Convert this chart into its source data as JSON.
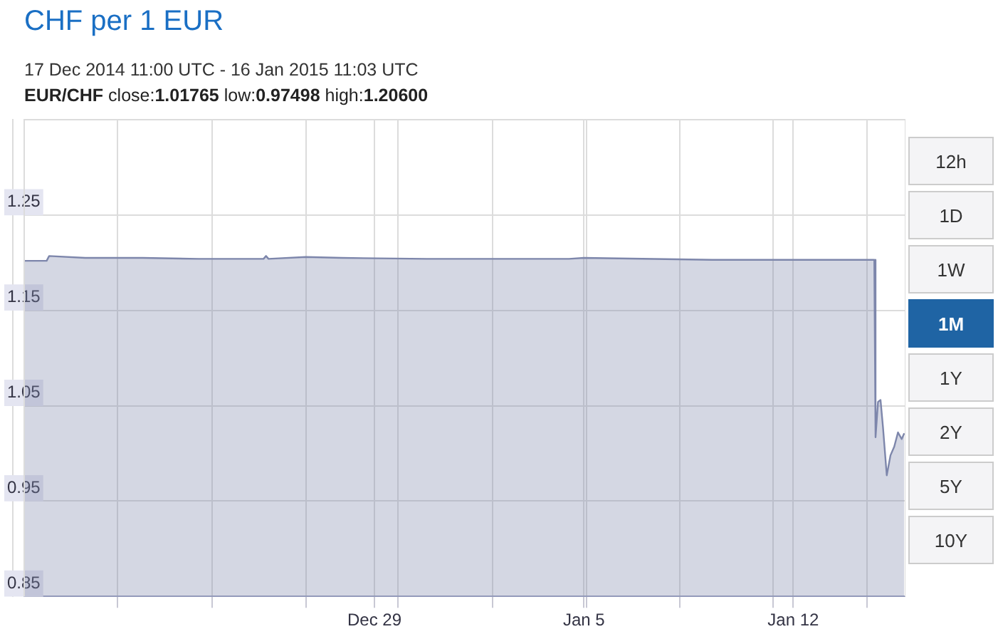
{
  "chart_data": {
    "type": "area",
    "title": "CHF per 1 EUR",
    "subtitle": "17 Dec 2014 11:00 UTC - 16 Jan 2015 11:03 UTC",
    "annotations": [
      "EUR/CHF close:1.01765 low:0.97498 high:1.20600",
      "12h",
      "1D",
      "1W",
      "1M",
      "1Y",
      "2Y",
      "5Y",
      "10Y"
    ],
    "x": [
      "2014-12-17T07:00",
      "2014-12-18T01:00",
      "2014-12-18T03:00",
      "2014-12-19T08:00",
      "2014-12-21T06:00",
      "2014-12-23T03:00",
      "2014-12-25T07:00",
      "2014-12-25T09:00",
      "2014-12-25T11:00",
      "2014-12-26T17:00",
      "2014-12-27T22:00",
      "2014-12-30T18:00",
      "2015-01-04T12:00",
      "2015-01-05T00:00",
      "2015-01-09T07:00",
      "2015-01-14T17:00",
      "2015-01-14T18:00",
      "2015-01-14T20:00",
      "2015-01-14T22:00",
      "2015-01-15T00:00",
      "2015-01-15T03:00",
      "2015-01-15T06:00",
      "2015-01-15T09:00",
      "2015-01-15T12:00",
      "2015-01-15T15:00",
      "2015-01-15T17:00"
    ],
    "series": [
      {
        "color": "#7d86ab",
        "values": [
          1.202,
          1.202,
          1.207,
          1.205,
          1.205,
          1.204,
          1.204,
          1.207,
          1.204,
          1.206,
          1.205,
          1.204,
          1.204,
          1.205,
          1.203,
          1.203,
          1.017,
          1.054,
          1.056,
          1.027,
          0.977,
          0.998,
          1.007,
          1.022,
          1.015,
          1.021
        ]
      }
    ],
    "xlim": [
      "2014-12-17T07:00",
      "2015-01-15T18:00"
    ],
    "xticks": [
      {
        "value": "2014-12-20T10:00",
        "label": null
      },
      {
        "value": "2014-12-23T14:00",
        "label": null
      },
      {
        "value": "2014-12-26T17:00",
        "label": null
      },
      {
        "value": "2014-12-29T00:00",
        "label": "Dec 29"
      },
      {
        "value": "2014-12-29T19:00",
        "label": null
      },
      {
        "value": "2015-01-01T23:00",
        "label": null
      },
      {
        "value": "2015-01-05T00:00",
        "label": "Jan 5"
      },
      {
        "value": "2015-01-05T02:00",
        "label": null
      },
      {
        "value": "2015-01-08T05:00",
        "label": null
      },
      {
        "value": "2015-01-11T08:00",
        "label": null
      },
      {
        "value": "2015-01-12T00:00",
        "label": "Jan 12"
      },
      {
        "value": "2015-01-14T11:00",
        "label": null
      }
    ],
    "ylim": [
      0.85,
      1.35
    ],
    "yticks": [
      0.85,
      0.95,
      1.05,
      1.15,
      1.25
    ],
    "grid": true,
    "legend": false,
    "marker": "none",
    "line_style": "solid"
  }
}
